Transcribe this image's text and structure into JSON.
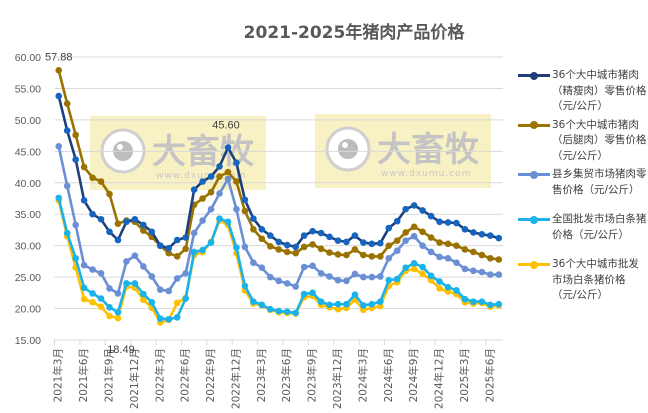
{
  "chart_data": {
    "type": "line",
    "title": "2021-2025年猪肉产品价格",
    "xlabel": "",
    "ylabel": "",
    "ylim": [
      15,
      60
    ],
    "yticks": [
      "15.00",
      "20.00",
      "25.00",
      "30.00",
      "35.00",
      "40.00",
      "45.00",
      "50.00",
      "55.00",
      "60.00"
    ],
    "grid": true,
    "legend_position": "right",
    "x": [
      "2021-03",
      "2021-04",
      "2021-05",
      "2021-06",
      "2021-07",
      "2021-08",
      "2021-09",
      "2021-10",
      "2021-11",
      "2021-12",
      "2022-01",
      "2022-02",
      "2022-03",
      "2022-04",
      "2022-05",
      "2022-06",
      "2022-07",
      "2022-08",
      "2022-09",
      "2022-10",
      "2022-11",
      "2022-12",
      "2023-01",
      "2023-02",
      "2023-03",
      "2023-04",
      "2023-05",
      "2023-06",
      "2023-07",
      "2023-08",
      "2023-09",
      "2023-10",
      "2023-11",
      "2023-12",
      "2024-01",
      "2024-02",
      "2024-03",
      "2024-04",
      "2024-05",
      "2024-06",
      "2024-07",
      "2024-08",
      "2024-09",
      "2024-10",
      "2024-11",
      "2024-12",
      "2025-01",
      "2025-02",
      "2025-03",
      "2025-04",
      "2025-05",
      "2025-06",
      "2025-07"
    ],
    "x_tick_labels": [
      "2021年3月",
      "2021年6月",
      "2021年9月",
      "2021年12月",
      "2022年3月",
      "2022年6月",
      "2022年9月",
      "2022年12月",
      "2023年3月",
      "2023年6月",
      "2023年9月",
      "2023年12月",
      "2024年3月",
      "2024年6月",
      "2024年9月",
      "2024年12月",
      "2025年3月",
      "2025年6月"
    ],
    "series": [
      {
        "name": "36个大中城市猪肉（精瘦肉）零售价格（元/公斤）",
        "color": "#1f3f7a",
        "marker_color": "#1565c0",
        "values": [
          53.8,
          48.3,
          43.7,
          37.2,
          35.0,
          34.2,
          32.2,
          30.9,
          33.8,
          34.2,
          33.3,
          32.2,
          30.0,
          29.6,
          30.9,
          31.3,
          38.9,
          40.2,
          41.0,
          42.6,
          45.6,
          43.2,
          37.3,
          34.3,
          32.6,
          31.6,
          30.6,
          30.1,
          29.8,
          31.6,
          32.3,
          32.0,
          31.4,
          30.8,
          30.6,
          31.6,
          30.5,
          30.3,
          30.4,
          32.8,
          33.9,
          35.8,
          36.4,
          35.6,
          34.7,
          33.8,
          33.7,
          33.6,
          32.6,
          32.1,
          31.8,
          31.6,
          31.2
        ]
      },
      {
        "name": "36个大中城市猪肉（后腿肉）零售价格（元/公斤）",
        "color": "#9a7200",
        "marker_color": "#9a7200",
        "values": [
          57.88,
          52.6,
          47.6,
          42.5,
          40.8,
          40.2,
          38.2,
          33.5,
          34.0,
          33.8,
          32.4,
          31.4,
          30.0,
          28.8,
          28.3,
          29.5,
          36.5,
          37.5,
          38.5,
          41.0,
          41.7,
          40.2,
          35.5,
          32.6,
          31.1,
          29.9,
          29.4,
          29.0,
          28.8,
          29.8,
          30.2,
          29.5,
          28.9,
          28.6,
          28.5,
          29.4,
          28.5,
          28.3,
          28.3,
          30.0,
          30.8,
          32.1,
          33.0,
          32.2,
          31.3,
          30.5,
          30.3,
          30.0,
          29.4,
          29.0,
          28.5,
          28.0,
          27.8
        ]
      },
      {
        "name": "县乡集贸市场猪肉零售价格（元/公斤）",
        "color": "#6b8fd4",
        "marker_color": "#6b8fd4",
        "values": [
          45.8,
          39.5,
          33.3,
          26.9,
          26.2,
          25.6,
          23.2,
          22.4,
          27.5,
          28.4,
          26.7,
          25.1,
          23.0,
          22.8,
          24.8,
          25.6,
          32.0,
          34.0,
          35.8,
          38.3,
          40.6,
          35.8,
          29.8,
          27.3,
          26.5,
          25.0,
          24.4,
          24.0,
          23.5,
          26.6,
          26.8,
          25.6,
          25.1,
          24.5,
          24.4,
          25.5,
          25.0,
          25.0,
          25.1,
          28.0,
          29.2,
          30.8,
          31.5,
          30.0,
          29.0,
          28.2,
          28.0,
          27.3,
          26.3,
          26.0,
          25.8,
          25.4,
          25.4
        ]
      },
      {
        "name": "全国批发市场白条猪价格（元/公斤）",
        "color": "#1ab2ea",
        "marker_color": "#1ab2ea",
        "values": [
          37.6,
          32.0,
          28.0,
          23.3,
          22.4,
          21.6,
          20.2,
          19.4,
          24.0,
          24.0,
          22.3,
          21.0,
          18.4,
          18.3,
          18.6,
          21.6,
          29.0,
          29.3,
          30.5,
          34.3,
          33.8,
          29.7,
          23.6,
          21.1,
          20.6,
          19.9,
          19.6,
          19.5,
          19.3,
          22.3,
          22.5,
          21.1,
          20.6,
          20.7,
          20.7,
          22.2,
          20.5,
          20.7,
          21.1,
          24.5,
          24.7,
          26.5,
          27.2,
          26.6,
          25.2,
          24.3,
          23.4,
          22.9,
          21.5,
          21.1,
          21.1,
          20.6,
          20.7
        ]
      },
      {
        "name": "36个大中城市批发市场白条猪价格（元/公斤）",
        "color": "#ffc000",
        "marker_color": "#ffc000",
        "values": [
          37.2,
          31.5,
          26.5,
          21.5,
          21.0,
          20.3,
          18.8,
          18.49,
          23.5,
          23.3,
          21.4,
          20.1,
          17.8,
          18.2,
          20.9,
          21.7,
          28.5,
          29.0,
          30.6,
          34.0,
          33.3,
          28.8,
          22.9,
          20.8,
          20.5,
          19.8,
          19.4,
          19.3,
          19.2,
          21.8,
          22.0,
          20.6,
          20.2,
          19.9,
          20.1,
          21.4,
          19.8,
          20.1,
          20.4,
          23.6,
          24.2,
          26.0,
          26.3,
          25.5,
          24.5,
          23.2,
          22.7,
          22.3,
          21.0,
          20.8,
          20.9,
          20.3,
          20.5
        ]
      }
    ],
    "annotations": [
      {
        "text": "57.88",
        "series": 1,
        "index": 0
      },
      {
        "text": "45.60",
        "series": 0,
        "index": 20
      },
      {
        "text": "18.49",
        "series": 4,
        "index": 7
      }
    ],
    "watermarks": [
      {
        "brand": "大畜牧",
        "url": "www.dxumu.com"
      },
      {
        "brand": "大畜牧",
        "url": "www.dxumu.com"
      }
    ]
  },
  "legend": {
    "items": [
      {
        "label": "36个大中城市猪肉（精瘦肉）零售价格（元/公斤）",
        "color": "#1f3f7a"
      },
      {
        "label": "36个大中城市猪肉（后腿肉）零售价格（元/公斤）",
        "color": "#9a7200"
      },
      {
        "label": "县乡集贸市场猪肉零售价格（元/公斤）",
        "color": "#6b8fd4"
      },
      {
        "label": "全国批发市场白条猪价格（元/公斤）",
        "color": "#1ab2ea"
      },
      {
        "label": "36个大中城市批发市场白条猪价格（元/公斤）",
        "color": "#ffc000"
      }
    ]
  }
}
